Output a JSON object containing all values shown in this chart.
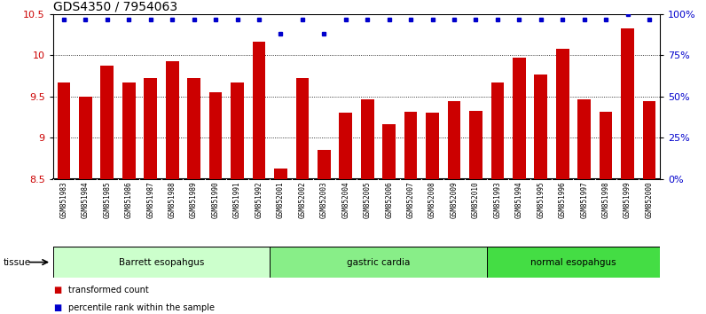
{
  "title": "GDS4350 / 7954063",
  "samples": [
    "GSM851983",
    "GSM851984",
    "GSM851985",
    "GSM851986",
    "GSM851987",
    "GSM851988",
    "GSM851989",
    "GSM851990",
    "GSM851991",
    "GSM851992",
    "GSM852001",
    "GSM852002",
    "GSM852003",
    "GSM852004",
    "GSM852005",
    "GSM852006",
    "GSM852007",
    "GSM852008",
    "GSM852009",
    "GSM852010",
    "GSM851993",
    "GSM851994",
    "GSM851995",
    "GSM851996",
    "GSM851997",
    "GSM851998",
    "GSM851999",
    "GSM852000"
  ],
  "bar_values": [
    9.67,
    9.5,
    9.87,
    9.67,
    9.72,
    9.93,
    9.72,
    9.55,
    9.67,
    10.17,
    8.63,
    9.72,
    8.85,
    9.3,
    9.47,
    9.17,
    9.32,
    9.3,
    9.45,
    9.33,
    9.67,
    9.97,
    9.77,
    10.08,
    9.47,
    9.32,
    10.33,
    9.45
  ],
  "percentile_values": [
    97,
    97,
    97,
    97,
    97,
    97,
    97,
    97,
    97,
    97,
    88,
    97,
    88,
    97,
    97,
    97,
    97,
    97,
    97,
    97,
    97,
    97,
    97,
    97,
    97,
    97,
    100,
    97
  ],
  "groups": [
    {
      "label": "Barrett esopahgus",
      "start": 0,
      "end": 9,
      "color": "#ccffcc"
    },
    {
      "label": "gastric cardia",
      "start": 10,
      "end": 19,
      "color": "#88ee88"
    },
    {
      "label": "normal esopahgus",
      "start": 20,
      "end": 27,
      "color": "#44dd44"
    }
  ],
  "bar_color": "#cc0000",
  "dot_color": "#0000cc",
  "ylim_left": [
    8.5,
    10.5
  ],
  "ylim_right": [
    0,
    100
  ],
  "yticks_left": [
    8.5,
    9.0,
    9.5,
    10.0,
    10.5
  ],
  "yticks_right": [
    0,
    25,
    50,
    75,
    100
  ],
  "ylabel_left_color": "#cc0000",
  "ylabel_right_color": "#0000cc",
  "grid_values": [
    9.0,
    9.5,
    10.0
  ],
  "title_fontsize": 10,
  "legend_items": [
    {
      "label": "transformed count",
      "color": "#cc0000"
    },
    {
      "label": "percentile rank within the sample",
      "color": "#0000cc"
    }
  ],
  "background_color": "#ffffff",
  "tick_area_color": "#c8c8c8",
  "tissue_label": "tissue"
}
